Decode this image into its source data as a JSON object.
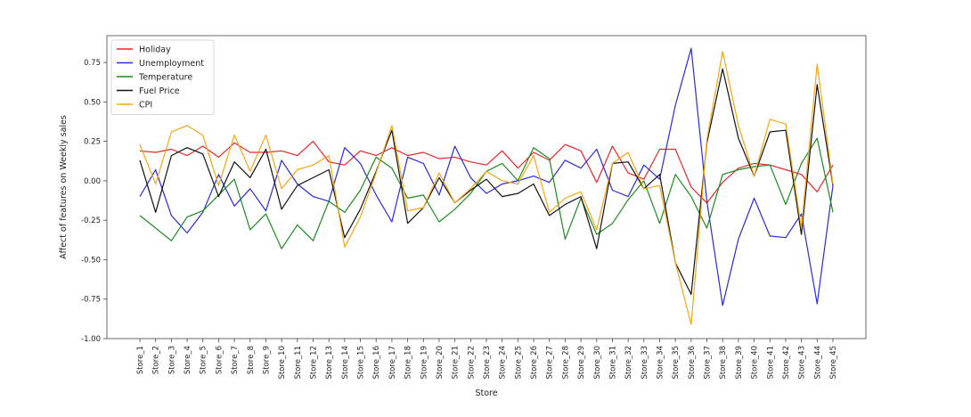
{
  "chart_data": {
    "type": "line",
    "title": "",
    "xlabel": "Store",
    "ylabel": "Affect of features on Weekly sales",
    "ylim": [
      -1.0,
      0.92
    ],
    "yticks": [
      -1.0,
      -0.75,
      -0.5,
      -0.25,
      0.0,
      0.25,
      0.5,
      0.75
    ],
    "ytick_labels": [
      "-1.00",
      "-0.75",
      "-0.50",
      "-0.25",
      "0.00",
      "0.25",
      "0.50",
      "0.75"
    ],
    "grid": false,
    "legend_position": "top-left",
    "categories": [
      "Store_1",
      "Store_2",
      "Store_3",
      "Store_4",
      "Store_5",
      "Store_6",
      "Store_7",
      "Store_8",
      "Store_9",
      "Store_10",
      "Store_11",
      "Store_12",
      "Store_13",
      "Store_14",
      "Store_15",
      "Store_16",
      "Store_17",
      "Store_18",
      "Store_19",
      "Store_20",
      "Store_21",
      "Store_22",
      "Store_23",
      "Store_24",
      "Store_25",
      "Store_26",
      "Store_27",
      "Store_28",
      "Store_29",
      "Store_30",
      "Store_31",
      "Store_32",
      "Store_33",
      "Store_34",
      "Store_35",
      "Store_36",
      "Store_37",
      "Store_38",
      "Store_39",
      "Store_40",
      "Store_41",
      "Store_42",
      "Store_43",
      "Store_44",
      "Store_45"
    ],
    "series": [
      {
        "name": "Holiday",
        "color": "#e8262b",
        "values": [
          0.19,
          0.18,
          0.2,
          0.16,
          0.22,
          0.15,
          0.24,
          0.18,
          0.18,
          0.19,
          0.16,
          0.25,
          0.12,
          0.1,
          0.19,
          0.16,
          0.21,
          0.16,
          0.18,
          0.14,
          0.15,
          0.12,
          0.1,
          0.19,
          0.08,
          0.18,
          0.13,
          0.23,
          0.19,
          -0.01,
          0.22,
          0.05,
          0.01,
          0.2,
          0.2,
          -0.04,
          -0.14,
          -0.01,
          0.08,
          0.11,
          0.1,
          0.07,
          0.04,
          -0.07,
          0.1
        ]
      },
      {
        "name": "Unemployment",
        "color": "#2a2adb",
        "values": [
          -0.1,
          0.07,
          -0.22,
          -0.33,
          -0.2,
          0.04,
          -0.16,
          -0.05,
          -0.19,
          0.13,
          -0.02,
          -0.1,
          -0.13,
          0.21,
          0.11,
          -0.09,
          -0.26,
          0.15,
          0.11,
          -0.09,
          0.22,
          0.02,
          -0.08,
          -0.02,
          0.0,
          0.03,
          -0.01,
          0.13,
          0.08,
          0.2,
          -0.06,
          -0.1,
          0.1,
          0.01,
          0.48,
          0.84,
          -0.13,
          -0.79,
          -0.37,
          -0.11,
          -0.35,
          -0.36,
          -0.21,
          -0.78,
          -0.03
        ]
      },
      {
        "name": "Temperature",
        "color": "#1e8a1e",
        "values": [
          -0.22,
          -0.3,
          -0.38,
          -0.23,
          -0.19,
          -0.09,
          0.01,
          -0.31,
          -0.21,
          -0.43,
          -0.28,
          -0.38,
          -0.13,
          -0.2,
          -0.06,
          0.15,
          0.08,
          -0.11,
          -0.09,
          -0.26,
          -0.18,
          -0.08,
          0.06,
          0.11,
          0.0,
          0.21,
          0.14,
          -0.37,
          -0.11,
          -0.34,
          -0.27,
          -0.12,
          0.0,
          -0.27,
          0.04,
          -0.1,
          -0.3,
          0.04,
          0.07,
          0.09,
          0.1,
          -0.15,
          0.11,
          0.27,
          -0.2
        ]
      },
      {
        "name": "Fuel Price",
        "color": "#111111",
        "values": [
          0.13,
          -0.2,
          0.16,
          0.21,
          0.17,
          -0.1,
          0.12,
          0.02,
          0.2,
          -0.18,
          -0.03,
          0.02,
          0.07,
          -0.36,
          -0.18,
          0.06,
          0.32,
          -0.27,
          -0.17,
          0.02,
          -0.14,
          -0.06,
          0.01,
          -0.1,
          -0.08,
          -0.02,
          -0.22,
          -0.15,
          -0.1,
          -0.43,
          0.11,
          0.12,
          -0.05,
          0.04,
          -0.52,
          -0.72,
          0.24,
          0.71,
          0.27,
          0.03,
          0.31,
          0.32,
          -0.34,
          0.61,
          -0.03
        ]
      },
      {
        "name": "CPI",
        "color": "#f5a614",
        "values": [
          0.23,
          -0.02,
          0.31,
          0.35,
          0.29,
          -0.03,
          0.29,
          0.06,
          0.29,
          -0.05,
          0.07,
          0.1,
          0.16,
          -0.42,
          -0.23,
          0.05,
          0.35,
          -0.19,
          -0.17,
          0.05,
          -0.14,
          -0.05,
          0.06,
          0.0,
          -0.02,
          0.16,
          -0.2,
          -0.11,
          -0.07,
          -0.31,
          0.11,
          0.18,
          -0.05,
          -0.03,
          -0.52,
          -0.91,
          0.26,
          0.82,
          0.35,
          0.03,
          0.39,
          0.36,
          -0.3,
          0.74,
          -0.02
        ]
      }
    ]
  }
}
